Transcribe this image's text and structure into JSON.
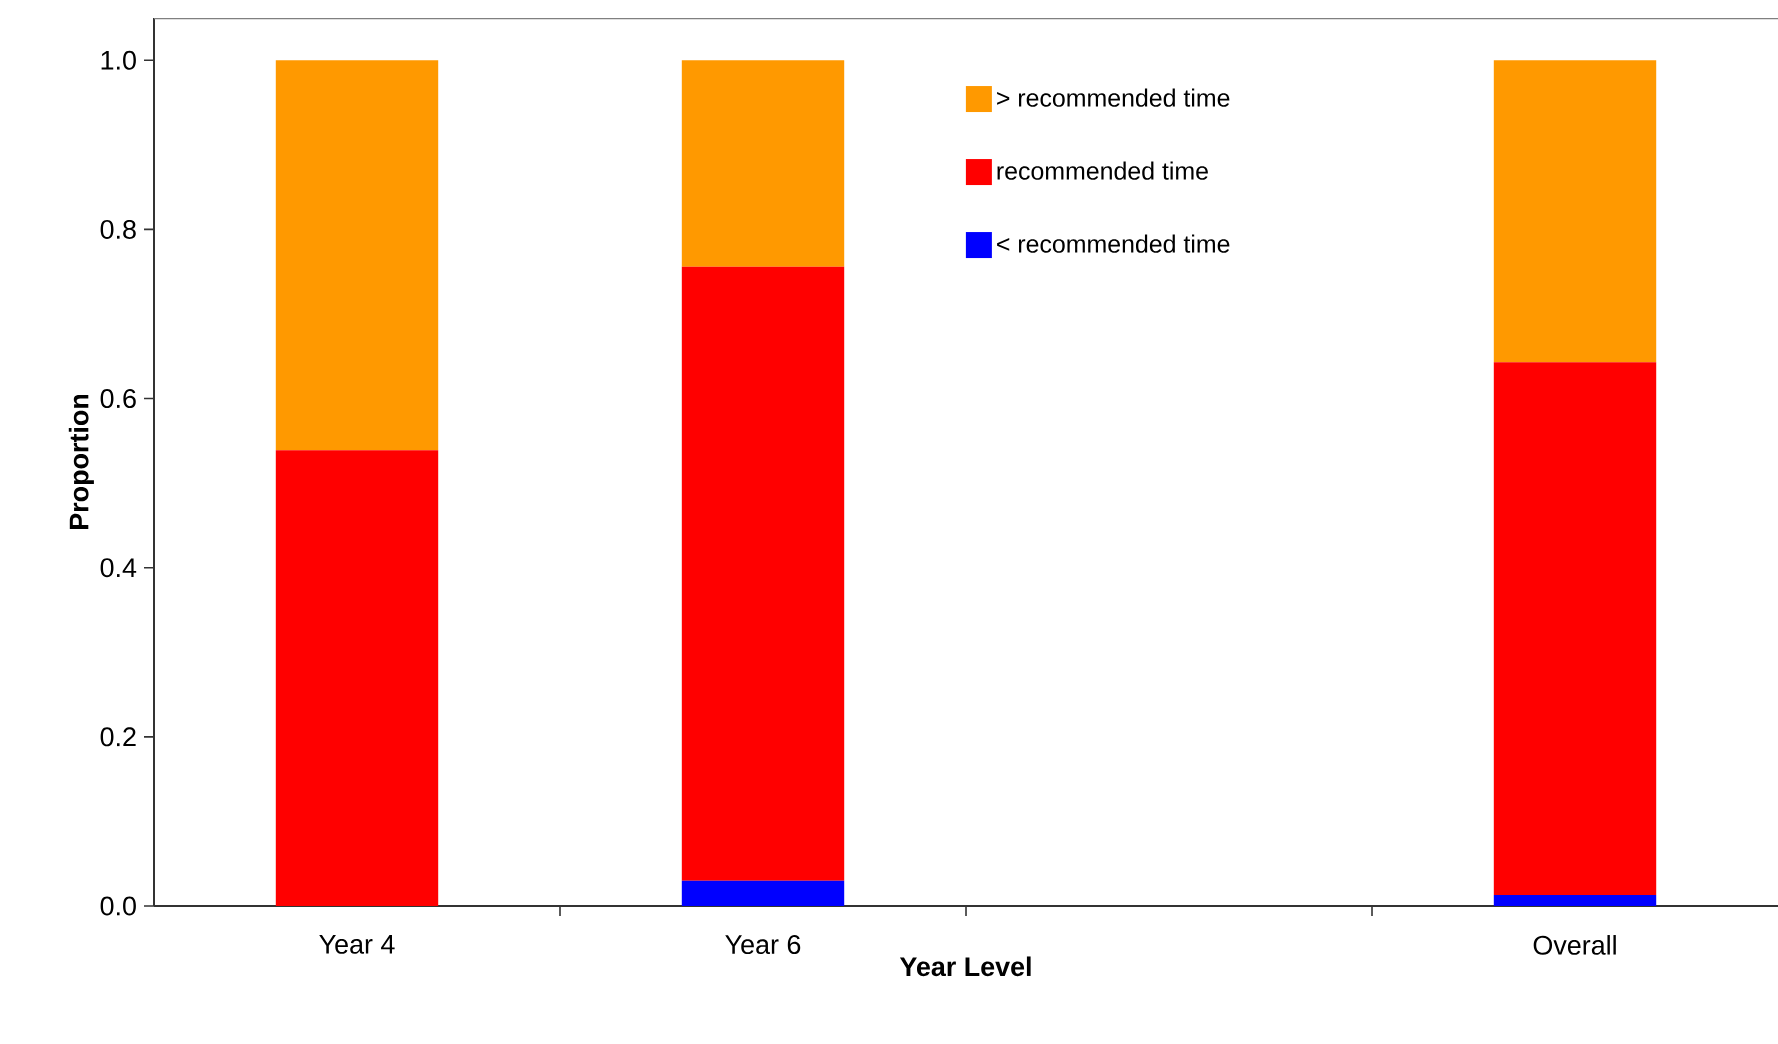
{
  "chart_data": {
    "type": "bar",
    "stacked": true,
    "xlabel": "Year Level",
    "ylabel": "Proportion",
    "categories": [
      "Year 4",
      "Year 6",
      null,
      "Overall"
    ],
    "series": [
      {
        "name": "< recommended time",
        "color": "#0000ff",
        "values": [
          0,
          0.03,
          null,
          0.013
        ]
      },
      {
        "name": "recommended time",
        "color": "#ff0000",
        "values": [
          0.539,
          0.726,
          null,
          0.63
        ]
      },
      {
        "name": "> recommended time",
        "color": "#ff9900",
        "values": [
          0.461,
          0.244,
          null,
          0.357
        ]
      }
    ],
    "ylim": [
      0,
      1.05
    ],
    "yticks": [
      {
        "value": 0,
        "label": "0.0"
      },
      {
        "value": 0.2,
        "label": "0.2"
      },
      {
        "value": 0.4,
        "label": "0.4"
      },
      {
        "value": 0.6,
        "label": "0.6"
      },
      {
        "value": 0.8,
        "label": "0.8"
      },
      {
        "value": 1.0,
        "label": "1.0"
      }
    ],
    "legend": "top"
  }
}
